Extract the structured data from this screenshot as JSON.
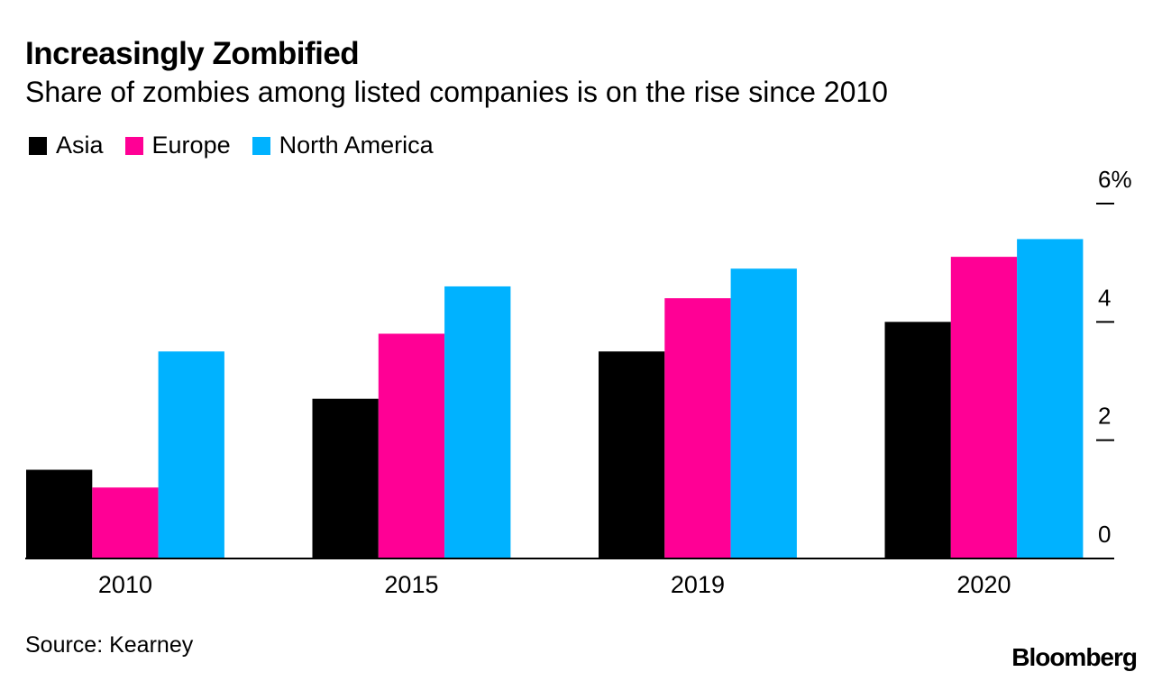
{
  "header": {
    "title": "Increasingly Zombified",
    "subtitle": "Share of zombies among listed companies is on the rise since 2010"
  },
  "colors": {
    "Asia": "#000000",
    "Europe": "#ff0095",
    "North America": "#00b2ff"
  },
  "chart_data": {
    "type": "bar",
    "title": "Increasingly Zombified",
    "subtitle": "Share of zombies among listed companies is on the rise since 2010",
    "categories": [
      "2010",
      "2015",
      "2019",
      "2020"
    ],
    "series": [
      {
        "name": "Asia",
        "values": [
          1.5,
          2.7,
          3.5,
          4.0
        ]
      },
      {
        "name": "Europe",
        "values": [
          1.2,
          3.8,
          4.4,
          5.1
        ]
      },
      {
        "name": "North America",
        "values": [
          3.5,
          4.6,
          4.9,
          5.4
        ]
      }
    ],
    "ylim": [
      0,
      6
    ],
    "yticks": [
      0,
      2,
      4,
      6
    ],
    "ytick_labels": [
      "0",
      "2",
      "4",
      "6%"
    ],
    "xlabel": "",
    "ylabel": "",
    "yaxis_side": "right",
    "grid": false,
    "legend_position": "top-left"
  },
  "footer": {
    "source": "Source: Kearney",
    "brand": "Bloomberg"
  }
}
